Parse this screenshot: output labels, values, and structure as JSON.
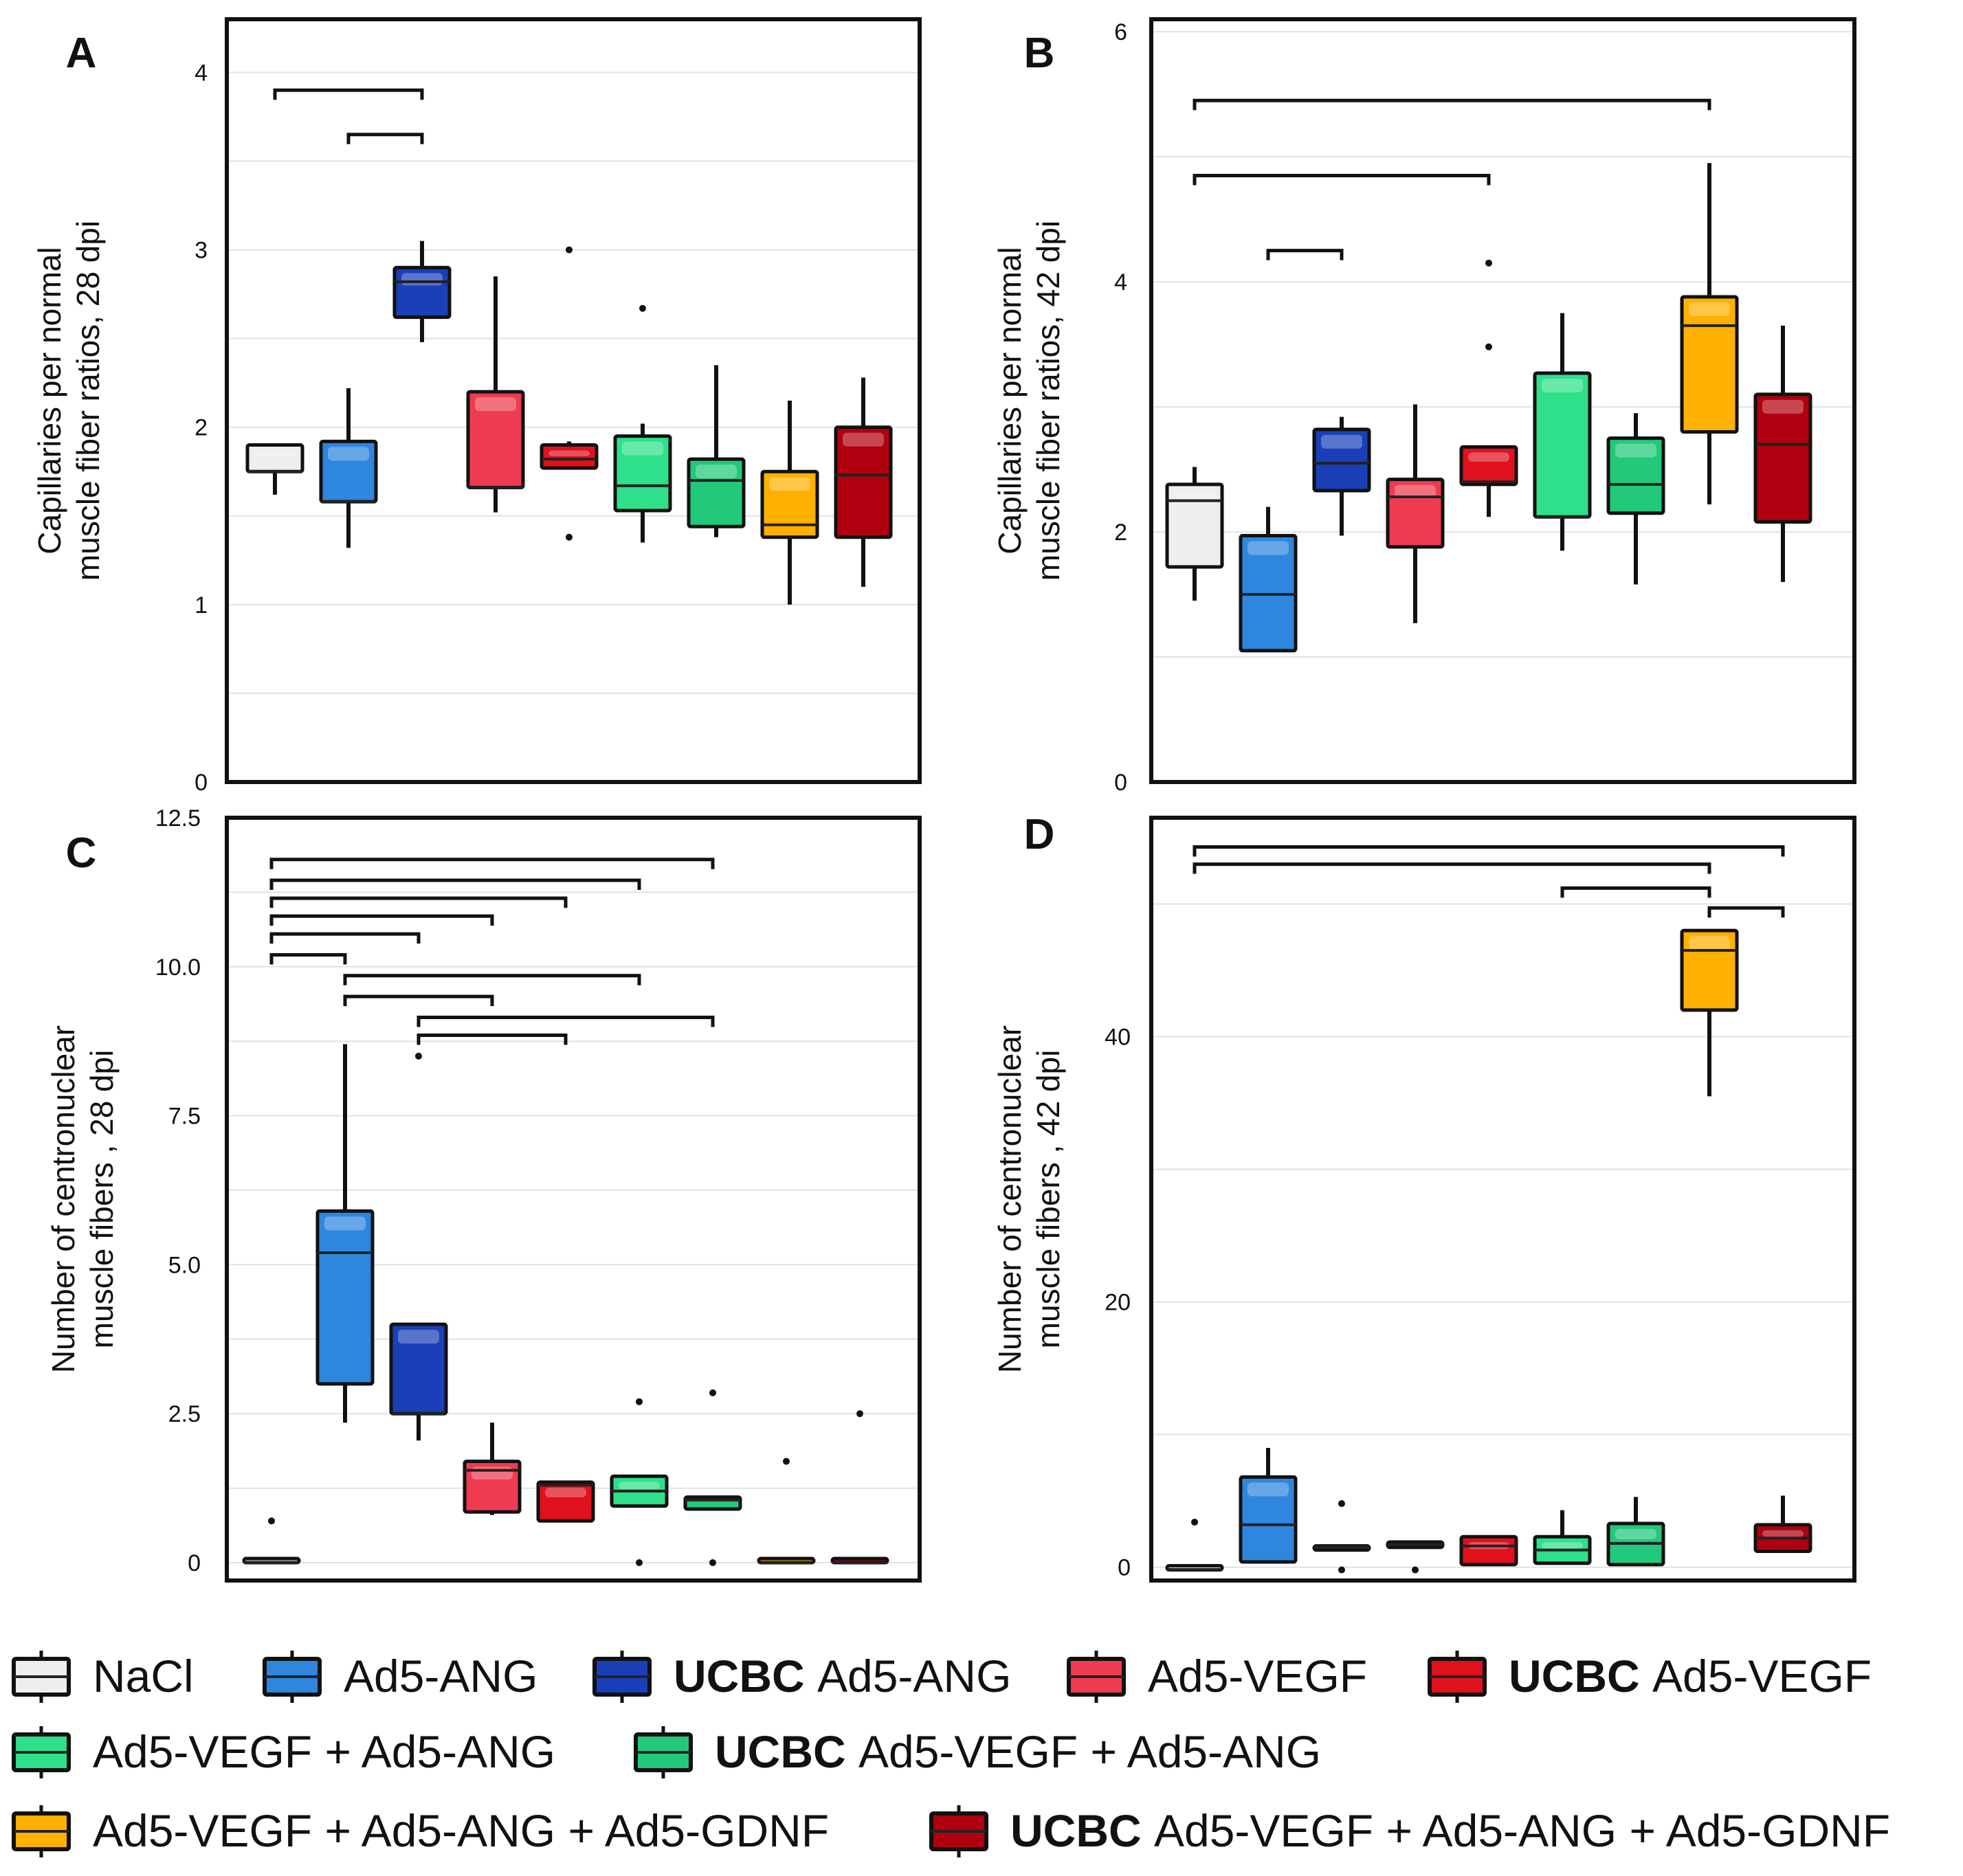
{
  "colors": {
    "NaCl": "#eeeeee",
    "Ad5-ANG": "#2e86de",
    "UCBC Ad5-ANG": "#1a3fb8",
    "Ad5-VEGF": "#ee3b4f",
    "UCBC Ad5-VEGF": "#e0101c",
    "Ad5-VEGF + Ad5-ANG": "#2ee08a",
    "UCBC Ad5-VEGF + Ad5-ANG": "#22c97a",
    "Ad5-VEGF + Ad5-ANG + Ad5-GDNF": "#ffb000",
    "UCBC Ad5-VEGF + Ad5-ANG + Ad5-GDNF": "#b00010"
  },
  "legend": {
    "items": [
      {
        "key": "NaCl",
        "prefix": "",
        "label": "NaCl"
      },
      {
        "key": "Ad5-ANG",
        "prefix": "",
        "label": "Ad5-ANG"
      },
      {
        "key": "UCBC Ad5-ANG",
        "prefix": "UCBC",
        "label": "Ad5-ANG"
      },
      {
        "key": "Ad5-VEGF",
        "prefix": "",
        "label": "Ad5-VEGF"
      },
      {
        "key": "UCBC Ad5-VEGF",
        "prefix": "UCBC",
        "label": "Ad5-VEGF"
      },
      {
        "key": "Ad5-VEGF + Ad5-ANG",
        "prefix": "",
        "label": "Ad5-VEGF + Ad5-ANG"
      },
      {
        "key": "UCBC Ad5-VEGF + Ad5-ANG",
        "prefix": "UCBC",
        "label": "Ad5-VEGF + Ad5-ANG"
      },
      {
        "key": "Ad5-VEGF + Ad5-ANG + Ad5-GDNF",
        "prefix": "",
        "label": "Ad5-VEGF + Ad5-ANG + Ad5-GDNF"
      },
      {
        "key": "UCBC Ad5-VEGF + Ad5-ANG + Ad5-GDNF",
        "prefix": "UCBC",
        "label": "Ad5-VEGF + Ad5-ANG + Ad5-GDNF"
      }
    ]
  },
  "chart_data": [
    {
      "panel": "A",
      "type": "box",
      "ylabel_lines": [
        "Capillaries per normal",
        "muscle fiber ratios, 28 dpi"
      ],
      "ylim": [
        0,
        4.3
      ],
      "yticks": [
        {
          "v": 0,
          "label": "0"
        },
        {
          "v": 1,
          "label": "1"
        },
        {
          "v": 2,
          "label": "2"
        },
        {
          "v": 3,
          "label": "3"
        },
        {
          "v": 4,
          "label": "4"
        }
      ],
      "grid": true,
      "groups": [
        {
          "key": "NaCl",
          "whisker_low": 1.62,
          "q1": 1.75,
          "median": 1.75,
          "q3": 1.9,
          "whisker_high": 1.9,
          "outliers": []
        },
        {
          "key": "Ad5-ANG",
          "whisker_low": 1.32,
          "q1": 1.58,
          "median": 1.58,
          "q3": 1.92,
          "whisker_high": 2.22,
          "outliers": []
        },
        {
          "key": "UCBC Ad5-ANG",
          "whisker_low": 2.48,
          "q1": 2.62,
          "median": 2.82,
          "q3": 2.9,
          "whisker_high": 3.05,
          "outliers": []
        },
        {
          "key": "Ad5-VEGF",
          "whisker_low": 1.52,
          "q1": 1.66,
          "median": 1.66,
          "q3": 2.2,
          "whisker_high": 2.85,
          "outliers": []
        },
        {
          "key": "UCBC Ad5-VEGF",
          "whisker_low": 1.77,
          "q1": 1.77,
          "median": 1.82,
          "q3": 1.9,
          "whisker_high": 1.92,
          "outliers": [
            3.0,
            1.38
          ]
        },
        {
          "key": "Ad5-VEGF + Ad5-ANG",
          "whisker_low": 1.35,
          "q1": 1.53,
          "median": 1.67,
          "q3": 1.95,
          "whisker_high": 2.02,
          "outliers": [
            2.67
          ]
        },
        {
          "key": "UCBC Ad5-VEGF + Ad5-ANG",
          "whisker_low": 1.38,
          "q1": 1.44,
          "median": 1.7,
          "q3": 1.82,
          "whisker_high": 2.35,
          "outliers": []
        },
        {
          "key": "Ad5-VEGF + Ad5-ANG + Ad5-GDNF",
          "whisker_low": 1.0,
          "q1": 1.38,
          "median": 1.45,
          "q3": 1.75,
          "whisker_high": 2.15,
          "outliers": []
        },
        {
          "key": "UCBC Ad5-VEGF + Ad5-ANG + Ad5-GDNF",
          "whisker_low": 1.1,
          "q1": 1.38,
          "median": 1.73,
          "q3": 2.0,
          "whisker_high": 2.28,
          "outliers": []
        }
      ],
      "significance": [
        {
          "from": 0,
          "to": 2,
          "y": 3.9
        },
        {
          "from": 1,
          "to": 2,
          "y": 3.65
        }
      ]
    },
    {
      "panel": "B",
      "type": "box",
      "ylabel_lines": [
        "Capillaries per normal",
        "muscle fiber ratios, 42 dpi"
      ],
      "ylim": [
        0,
        6.1
      ],
      "yticks": [
        {
          "v": 0,
          "label": "0"
        },
        {
          "v": 2,
          "label": "2"
        },
        {
          "v": 4,
          "label": "4"
        },
        {
          "v": 6,
          "label": "6"
        }
      ],
      "grid": true,
      "groups": [
        {
          "key": "NaCl",
          "whisker_low": 1.45,
          "q1": 1.72,
          "median": 2.25,
          "q3": 2.38,
          "whisker_high": 2.52,
          "outliers": []
        },
        {
          "key": "Ad5-ANG",
          "whisker_low": 1.05,
          "q1": 1.05,
          "median": 1.5,
          "q3": 1.97,
          "whisker_high": 2.2,
          "outliers": []
        },
        {
          "key": "UCBC Ad5-ANG",
          "whisker_low": 1.97,
          "q1": 2.33,
          "median": 2.55,
          "q3": 2.82,
          "whisker_high": 2.92,
          "outliers": []
        },
        {
          "key": "Ad5-VEGF",
          "whisker_low": 1.27,
          "q1": 1.88,
          "median": 2.28,
          "q3": 2.42,
          "whisker_high": 3.02,
          "outliers": []
        },
        {
          "key": "UCBC Ad5-VEGF",
          "whisker_low": 2.12,
          "q1": 2.38,
          "median": 2.4,
          "q3": 2.68,
          "whisker_high": 2.68,
          "outliers": [
            4.15,
            3.48
          ]
        },
        {
          "key": "Ad5-VEGF + Ad5-ANG",
          "whisker_low": 1.85,
          "q1": 2.12,
          "median": 2.12,
          "q3": 3.27,
          "whisker_high": 3.75,
          "outliers": []
        },
        {
          "key": "UCBC Ad5-VEGF + Ad5-ANG",
          "whisker_low": 1.58,
          "q1": 2.15,
          "median": 2.38,
          "q3": 2.75,
          "whisker_high": 2.95,
          "outliers": []
        },
        {
          "key": "Ad5-VEGF + Ad5-ANG + Ad5-GDNF",
          "whisker_low": 2.22,
          "q1": 2.8,
          "median": 3.65,
          "q3": 3.88,
          "whisker_high": 4.95,
          "outliers": []
        },
        {
          "key": "UCBC Ad5-VEGF + Ad5-ANG + Ad5-GDNF",
          "whisker_low": 1.6,
          "q1": 2.08,
          "median": 2.7,
          "q3": 3.1,
          "whisker_high": 3.65,
          "outliers": []
        }
      ],
      "significance": [
        {
          "from": 0,
          "to": 7,
          "y": 5.45
        },
        {
          "from": 0,
          "to": 4,
          "y": 4.85
        },
        {
          "from": 1,
          "to": 2,
          "y": 4.25
        }
      ]
    },
    {
      "panel": "C",
      "type": "box",
      "ylabel_lines": [
        "Number of centronuclear",
        "muscle fibers , 28 dpi"
      ],
      "ylim": [
        -0.3,
        12.5
      ],
      "yticks": [
        {
          "v": 0,
          "label": "0"
        },
        {
          "v": 2.5,
          "label": "2.5"
        },
        {
          "v": 5,
          "label": "5.0"
        },
        {
          "v": 7.5,
          "label": "7.5"
        },
        {
          "v": 10,
          "label": "10.0"
        },
        {
          "v": 12.5,
          "label": "12.5"
        }
      ],
      "grid": true,
      "groups": [
        {
          "key": "NaCl",
          "whisker_low": 0,
          "q1": 0,
          "median": 0,
          "q3": 0,
          "whisker_high": 0,
          "outliers": [
            0.7
          ]
        },
        {
          "key": "Ad5-ANG",
          "whisker_low": 2.35,
          "q1": 3.0,
          "median": 5.2,
          "q3": 5.9,
          "whisker_high": 8.7,
          "outliers": []
        },
        {
          "key": "UCBC Ad5-ANG",
          "whisker_low": 2.05,
          "q1": 2.5,
          "median": 2.5,
          "q3": 4.0,
          "whisker_high": 4.0,
          "outliers": [
            8.5
          ]
        },
        {
          "key": "Ad5-VEGF",
          "whisker_low": 0.8,
          "q1": 0.85,
          "median": 1.55,
          "q3": 1.7,
          "whisker_high": 2.35,
          "outliers": []
        },
        {
          "key": "UCBC Ad5-VEGF",
          "whisker_low": 0.7,
          "q1": 0.7,
          "median": 1.3,
          "q3": 1.35,
          "whisker_high": 1.35,
          "outliers": []
        },
        {
          "key": "Ad5-VEGF + Ad5-ANG",
          "whisker_low": 0.95,
          "q1": 0.95,
          "median": 1.2,
          "q3": 1.45,
          "whisker_high": 1.45,
          "outliers": [
            2.7,
            0
          ]
        },
        {
          "key": "UCBC Ad5-VEGF + Ad5-ANG",
          "whisker_low": 0.9,
          "q1": 0.9,
          "median": 1.05,
          "q3": 1.1,
          "whisker_high": 1.1,
          "outliers": [
            2.85,
            0
          ]
        },
        {
          "key": "Ad5-VEGF + Ad5-ANG + Ad5-GDNF",
          "whisker_low": 0,
          "q1": 0,
          "median": 0,
          "q3": 0,
          "whisker_high": 0,
          "outliers": [
            1.7
          ]
        },
        {
          "key": "UCBC Ad5-VEGF + Ad5-ANG + Ad5-GDNF",
          "whisker_low": 0,
          "q1": 0,
          "median": 0,
          "q3": 0,
          "whisker_high": 0,
          "outliers": [
            2.5
          ]
        }
      ],
      "significance": [
        {
          "from": 0,
          "to": 6,
          "y": 11.8
        },
        {
          "from": 0,
          "to": 5,
          "y": 11.45
        },
        {
          "from": 0,
          "to": 4,
          "y": 11.15
        },
        {
          "from": 0,
          "to": 3,
          "y": 10.85
        },
        {
          "from": 0,
          "to": 2,
          "y": 10.55
        },
        {
          "from": 0,
          "to": 1,
          "y": 10.2
        },
        {
          "from": 1,
          "to": 5,
          "y": 9.85
        },
        {
          "from": 1,
          "to": 3,
          "y": 9.5
        },
        {
          "from": 2,
          "to": 6,
          "y": 9.15
        },
        {
          "from": 2,
          "to": 4,
          "y": 8.85
        }
      ]
    },
    {
      "panel": "D",
      "type": "box",
      "ylabel_lines": [
        "Number of centronuclear",
        "muscle fibers , 42 dpi"
      ],
      "ylim": [
        -1,
        56.5
      ],
      "yticks": [
        {
          "v": 0,
          "label": "0"
        },
        {
          "v": 20,
          "label": "20"
        },
        {
          "v": 40,
          "label": "40"
        }
      ],
      "grid": true,
      "groups": [
        {
          "key": "NaCl",
          "whisker_low": -0.2,
          "q1": -0.2,
          "median": -0.2,
          "q3": -0.2,
          "whisker_high": -0.2,
          "outliers": [
            3.4
          ]
        },
        {
          "key": "Ad5-ANG",
          "whisker_low": 0.4,
          "q1": 0.4,
          "median": 3.2,
          "q3": 6.8,
          "whisker_high": 9.0,
          "outliers": []
        },
        {
          "key": "UCBC Ad5-ANG",
          "whisker_low": 1.3,
          "q1": 1.3,
          "median": 1.5,
          "q3": 1.6,
          "whisker_high": 1.6,
          "outliers": [
            4.8,
            -0.2
          ]
        },
        {
          "key": "Ad5-VEGF",
          "whisker_low": 1.5,
          "q1": 1.5,
          "median": 1.7,
          "q3": 1.9,
          "whisker_high": 1.9,
          "outliers": [
            -0.2
          ]
        },
        {
          "key": "UCBC Ad5-VEGF",
          "whisker_low": 0.2,
          "q1": 0.2,
          "median": 1.6,
          "q3": 2.3,
          "whisker_high": 2.3,
          "outliers": []
        },
        {
          "key": "Ad5-VEGF + Ad5-ANG",
          "whisker_low": 0.3,
          "q1": 0.3,
          "median": 1.3,
          "q3": 2.3,
          "whisker_high": 4.3,
          "outliers": []
        },
        {
          "key": "UCBC Ad5-VEGF + Ad5-ANG",
          "whisker_low": 0.2,
          "q1": 0.2,
          "median": 1.8,
          "q3": 3.3,
          "whisker_high": 5.3,
          "outliers": []
        },
        {
          "key": "Ad5-VEGF + Ad5-ANG + Ad5-GDNF",
          "whisker_low": 35.5,
          "q1": 42.0,
          "median": 46.5,
          "q3": 48.0,
          "whisker_high": 48.0,
          "outliers": []
        },
        {
          "key": "UCBC Ad5-VEGF + Ad5-ANG + Ad5-GDNF",
          "whisker_low": 1.2,
          "q1": 1.2,
          "median": 2.2,
          "q3": 3.2,
          "whisker_high": 5.4,
          "outliers": []
        }
      ],
      "significance": [
        {
          "from": 0,
          "to": 8,
          "y": 54.3
        },
        {
          "from": 0,
          "to": 7,
          "y": 53.0
        },
        {
          "from": 5,
          "to": 7,
          "y": 51.2
        },
        {
          "from": 7,
          "to": 8,
          "y": 49.7
        }
      ]
    }
  ]
}
